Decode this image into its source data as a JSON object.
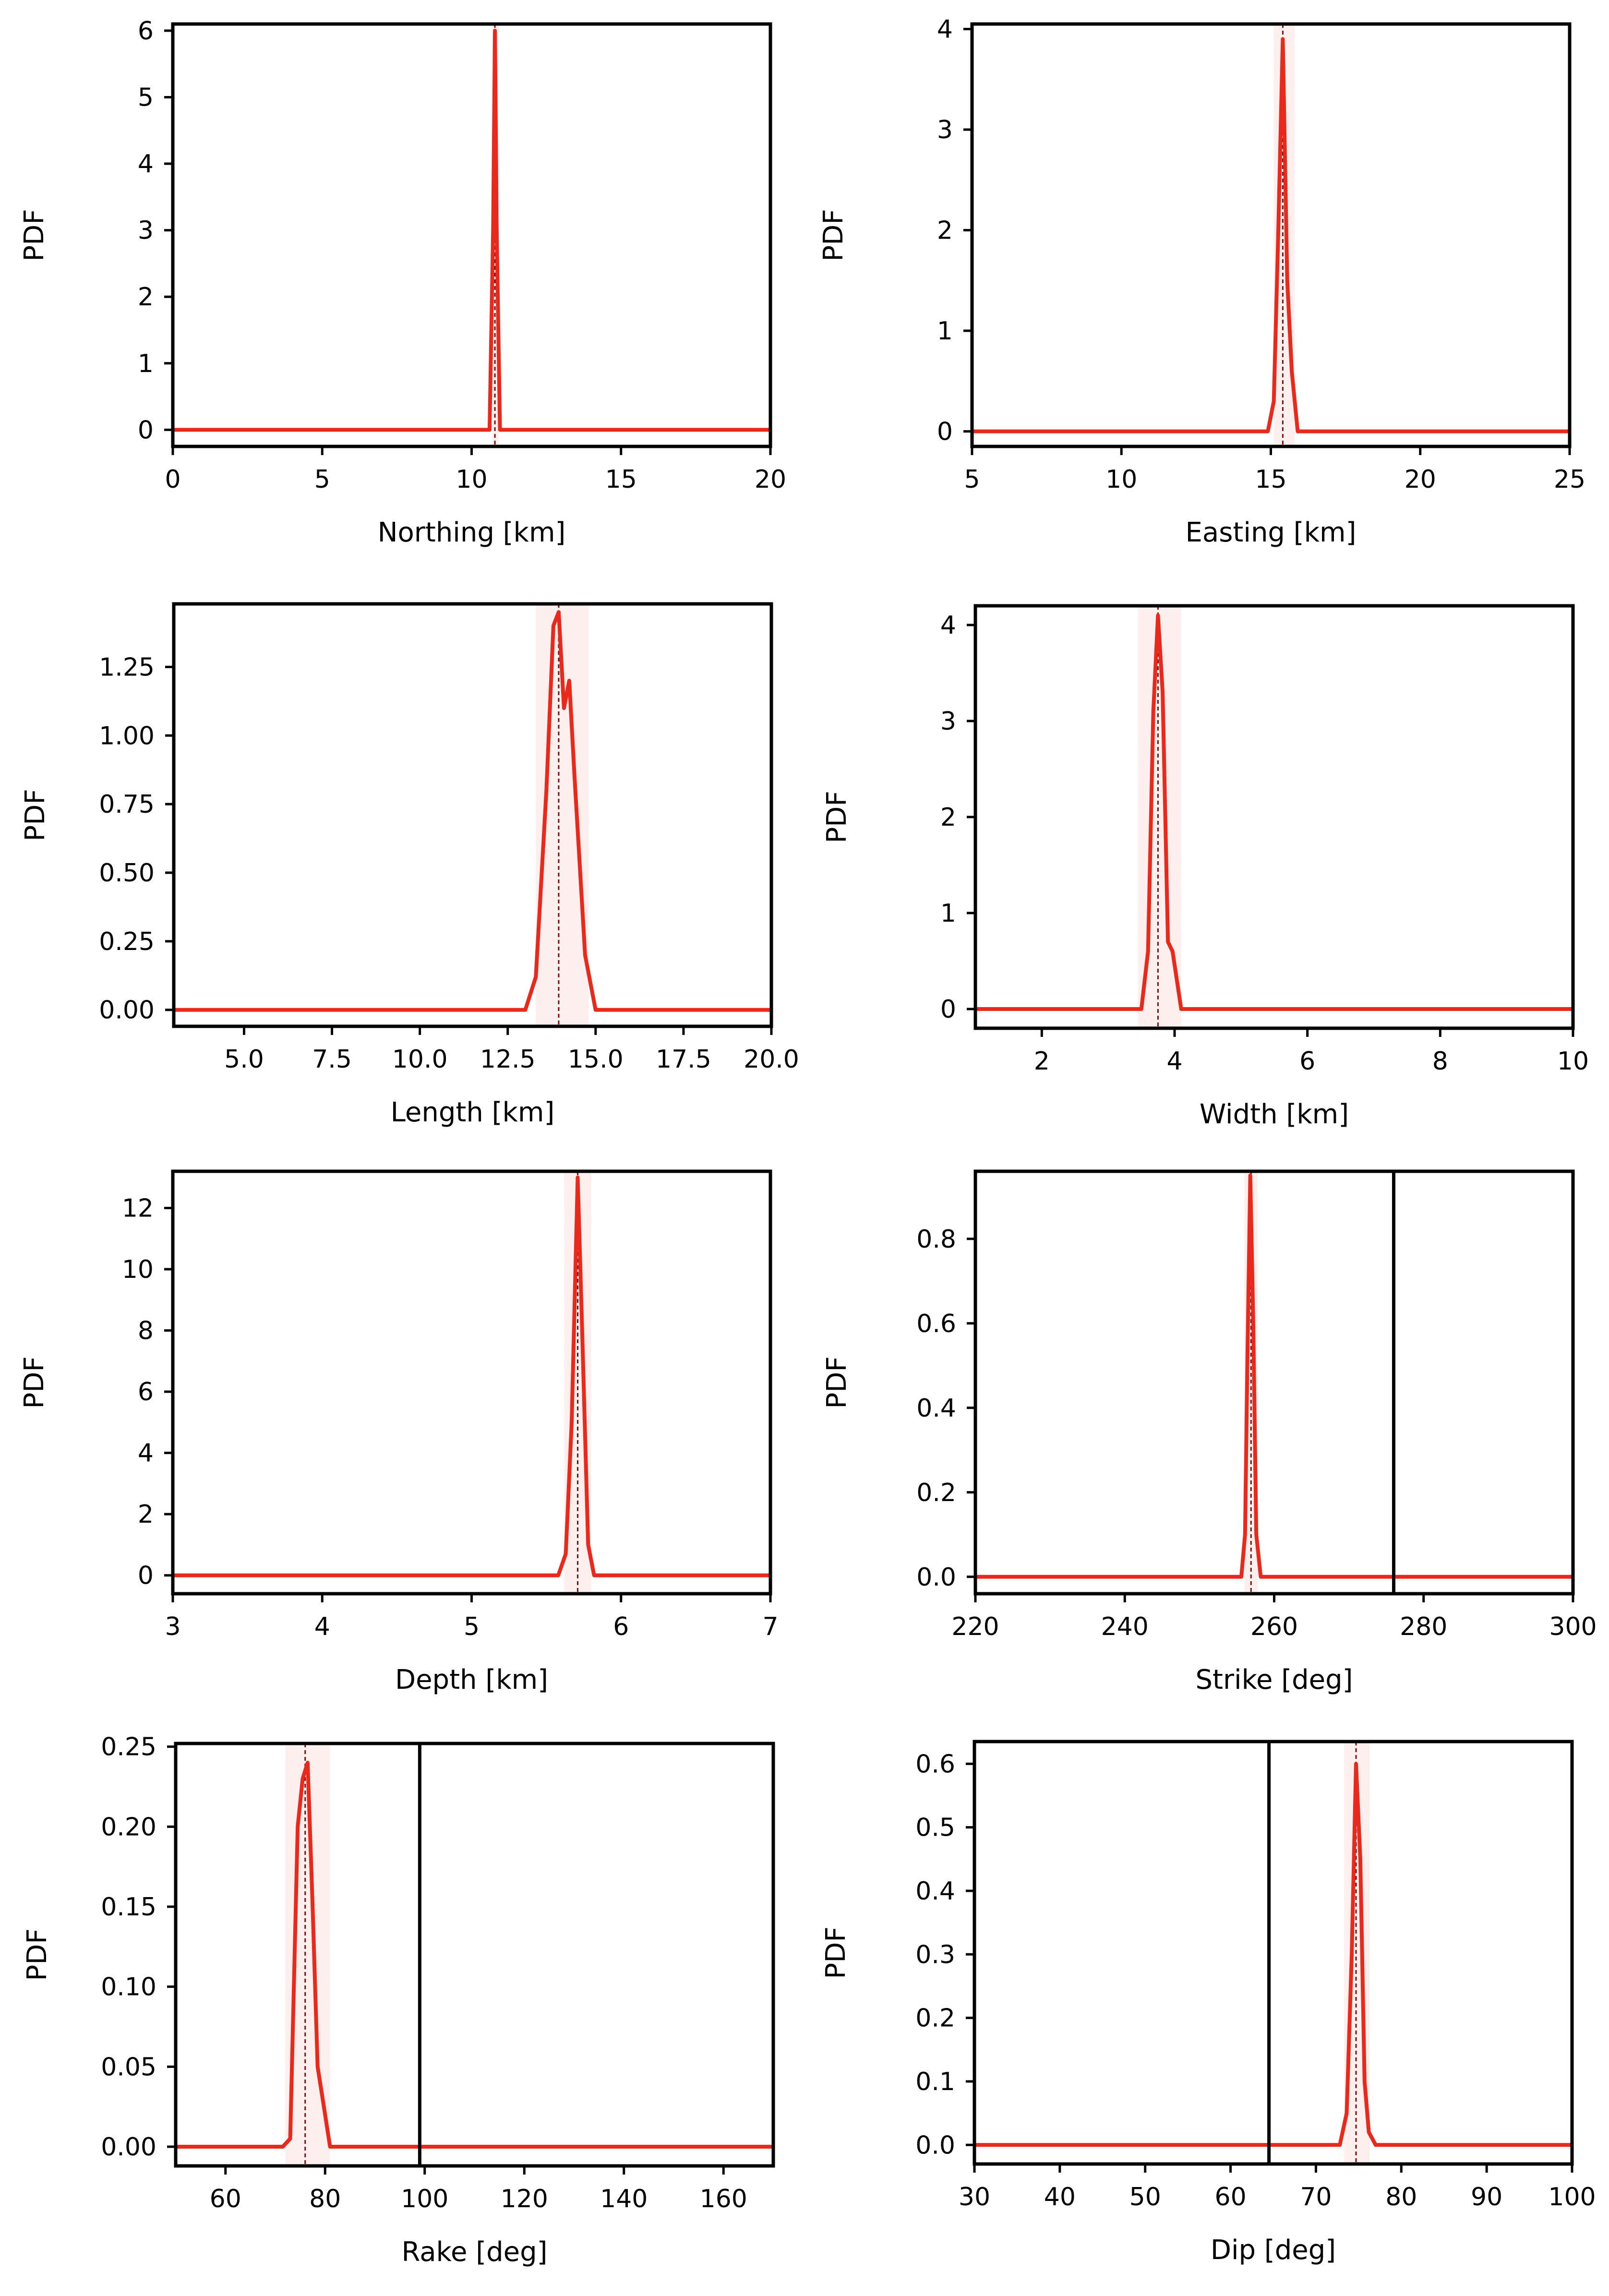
{
  "figure": {
    "description_kind": "posterior PDFs of fault parameters"
  },
  "chart_data": [
    {
      "type": "line",
      "xlabel": "Northing [km]",
      "ylabel": "PDF",
      "xlim": [
        0,
        20
      ],
      "ylim": [
        -0.25,
        6.1
      ],
      "xticks": [
        0,
        5,
        10,
        15,
        20
      ],
      "xtick_labels": [
        "0",
        "5",
        "10",
        "15",
        "20"
      ],
      "yticks": [
        0,
        1,
        2,
        3,
        4,
        5,
        6
      ],
      "ytick_labels": [
        "0",
        "1",
        "2",
        "3",
        "4",
        "5",
        "6"
      ],
      "x": [
        0,
        10.6,
        10.72,
        10.78,
        10.84,
        10.95,
        20
      ],
      "y": [
        0,
        0,
        3.0,
        6.0,
        3.0,
        0,
        0
      ],
      "mean": 10.78,
      "band": [
        10.7,
        10.9
      ],
      "reference": null
    },
    {
      "type": "line",
      "xlabel": "Easting [km]",
      "ylabel": "PDF",
      "xlim": [
        5,
        25
      ],
      "ylim": [
        -0.15,
        4.05
      ],
      "xticks": [
        5,
        10,
        15,
        20,
        25
      ],
      "xtick_labels": [
        "5",
        "10",
        "15",
        "20",
        "25"
      ],
      "yticks": [
        0,
        1,
        2,
        3,
        4
      ],
      "ytick_labels": [
        "0",
        "1",
        "2",
        "3",
        "4"
      ],
      "x": [
        5,
        14.9,
        15.1,
        15.25,
        15.4,
        15.55,
        15.7,
        15.9,
        25
      ],
      "y": [
        0,
        0,
        0.3,
        2.0,
        3.9,
        1.5,
        0.6,
        0,
        0
      ],
      "mean": 15.4,
      "band": [
        15.1,
        15.8
      ],
      "reference": null
    },
    {
      "type": "line",
      "xlabel": "Length [km]",
      "ylabel": "PDF",
      "xlim": [
        3,
        20
      ],
      "ylim": [
        -0.06,
        1.48
      ],
      "xticks": [
        5,
        7.5,
        10,
        12.5,
        15,
        17.5,
        20
      ],
      "xtick_labels": [
        "5.0",
        "7.5",
        "10.0",
        "12.5",
        "15.0",
        "17.5",
        "20.0"
      ],
      "yticks": [
        0,
        0.25,
        0.5,
        0.75,
        1.0,
        1.25
      ],
      "ytick_labels": [
        "0.00",
        "0.25",
        "0.50",
        "0.75",
        "1.00",
        "1.25"
      ],
      "x": [
        3,
        13.0,
        13.3,
        13.6,
        13.8,
        13.95,
        14.1,
        14.25,
        14.4,
        14.7,
        15.0,
        20
      ],
      "y": [
        0,
        0,
        0.12,
        0.8,
        1.4,
        1.45,
        1.1,
        1.2,
        0.85,
        0.2,
        0,
        0
      ],
      "mean": 13.95,
      "band": [
        13.3,
        14.8
      ],
      "reference": null
    },
    {
      "type": "line",
      "xlabel": "Width [km]",
      "ylabel": "PDF",
      "xlim": [
        1,
        10
      ],
      "ylim": [
        -0.2,
        4.2
      ],
      "xticks": [
        2,
        4,
        6,
        8,
        10
      ],
      "xtick_labels": [
        "2",
        "4",
        "6",
        "8",
        "10"
      ],
      "yticks": [
        0,
        1,
        2,
        3,
        4
      ],
      "ytick_labels": [
        "0",
        "1",
        "2",
        "3",
        "4"
      ],
      "x": [
        1,
        3.5,
        3.6,
        3.68,
        3.75,
        3.82,
        3.9,
        3.97,
        4.1,
        10
      ],
      "y": [
        0,
        0,
        0.6,
        3.1,
        4.1,
        3.3,
        0.7,
        0.6,
        0,
        0
      ],
      "mean": 3.75,
      "band": [
        3.45,
        4.1
      ],
      "reference": null
    },
    {
      "type": "line",
      "xlabel": "Depth [km]",
      "ylabel": "PDF",
      "xlim": [
        3,
        7
      ],
      "ylim": [
        -0.6,
        13.2
      ],
      "xticks": [
        3,
        4,
        5,
        6,
        7
      ],
      "xtick_labels": [
        "3",
        "4",
        "5",
        "6",
        "7"
      ],
      "yticks": [
        0,
        2,
        4,
        6,
        8,
        10,
        12
      ],
      "ytick_labels": [
        "0",
        "2",
        "4",
        "6",
        "8",
        "10",
        "12"
      ],
      "x": [
        3,
        5.58,
        5.63,
        5.67,
        5.71,
        5.74,
        5.78,
        5.82,
        7
      ],
      "y": [
        0,
        0,
        0.7,
        5.0,
        13.0,
        8.0,
        1.0,
        0,
        0
      ],
      "mean": 5.71,
      "band": [
        5.62,
        5.8
      ],
      "reference": null
    },
    {
      "type": "line",
      "xlabel": "Strike [deg]",
      "ylabel": "PDF",
      "xlim": [
        220,
        300
      ],
      "ylim": [
        -0.04,
        0.96
      ],
      "xticks": [
        220,
        240,
        260,
        280,
        300
      ],
      "xtick_labels": [
        "220",
        "240",
        "260",
        "280",
        "300"
      ],
      "yticks": [
        0,
        0.2,
        0.4,
        0.6,
        0.8
      ],
      "ytick_labels": [
        "0.0",
        "0.2",
        "0.4",
        "0.6",
        "0.8"
      ],
      "x": [
        220,
        255.6,
        256.1,
        256.4,
        256.8,
        257.2,
        257.6,
        258.2,
        300
      ],
      "y": [
        0,
        0,
        0.1,
        0.5,
        0.95,
        0.6,
        0.1,
        0,
        0
      ],
      "mean": 256.9,
      "band": [
        256.0,
        257.8
      ],
      "reference": 276
    },
    {
      "type": "line",
      "xlabel": "Rake [deg]",
      "ylabel": "PDF",
      "xlim": [
        50,
        170
      ],
      "ylim": [
        -0.012,
        0.252
      ],
      "xticks": [
        60,
        80,
        100,
        120,
        140,
        160
      ],
      "xtick_labels": [
        "60",
        "80",
        "100",
        "120",
        "140",
        "160"
      ],
      "yticks": [
        0,
        0.05,
        0.1,
        0.15,
        0.2,
        0.25
      ],
      "ytick_labels": [
        "0.00",
        "0.05",
        "0.10",
        "0.15",
        "0.20",
        "0.25"
      ],
      "x": [
        50,
        71.5,
        73,
        74.5,
        75.5,
        76.5,
        77.5,
        78.5,
        80,
        81,
        170
      ],
      "y": [
        0,
        0,
        0.005,
        0.2,
        0.23,
        0.24,
        0.15,
        0.05,
        0.02,
        0,
        0
      ],
      "mean": 76,
      "band": [
        72,
        81
      ],
      "reference": 99
    },
    {
      "type": "line",
      "xlabel": "Dip [deg]",
      "ylabel": "PDF",
      "xlim": [
        30,
        100
      ],
      "ylim": [
        -0.03,
        0.635
      ],
      "xticks": [
        30,
        40,
        50,
        60,
        70,
        80,
        90,
        100
      ],
      "xtick_labels": [
        "30",
        "40",
        "50",
        "60",
        "70",
        "80",
        "90",
        "100"
      ],
      "yticks": [
        0,
        0.1,
        0.2,
        0.3,
        0.4,
        0.5,
        0.6
      ],
      "ytick_labels": [
        "0.0",
        "0.1",
        "0.2",
        "0.3",
        "0.4",
        "0.5",
        "0.6"
      ],
      "x": [
        30,
        72.8,
        73.6,
        74.2,
        74.7,
        75.2,
        75.7,
        76.2,
        77,
        100
      ],
      "y": [
        0,
        0,
        0.05,
        0.3,
        0.6,
        0.45,
        0.1,
        0.02,
        0,
        0
      ],
      "mean": 74.7,
      "band": [
        73.3,
        76.3
      ],
      "reference": 64.5
    }
  ]
}
